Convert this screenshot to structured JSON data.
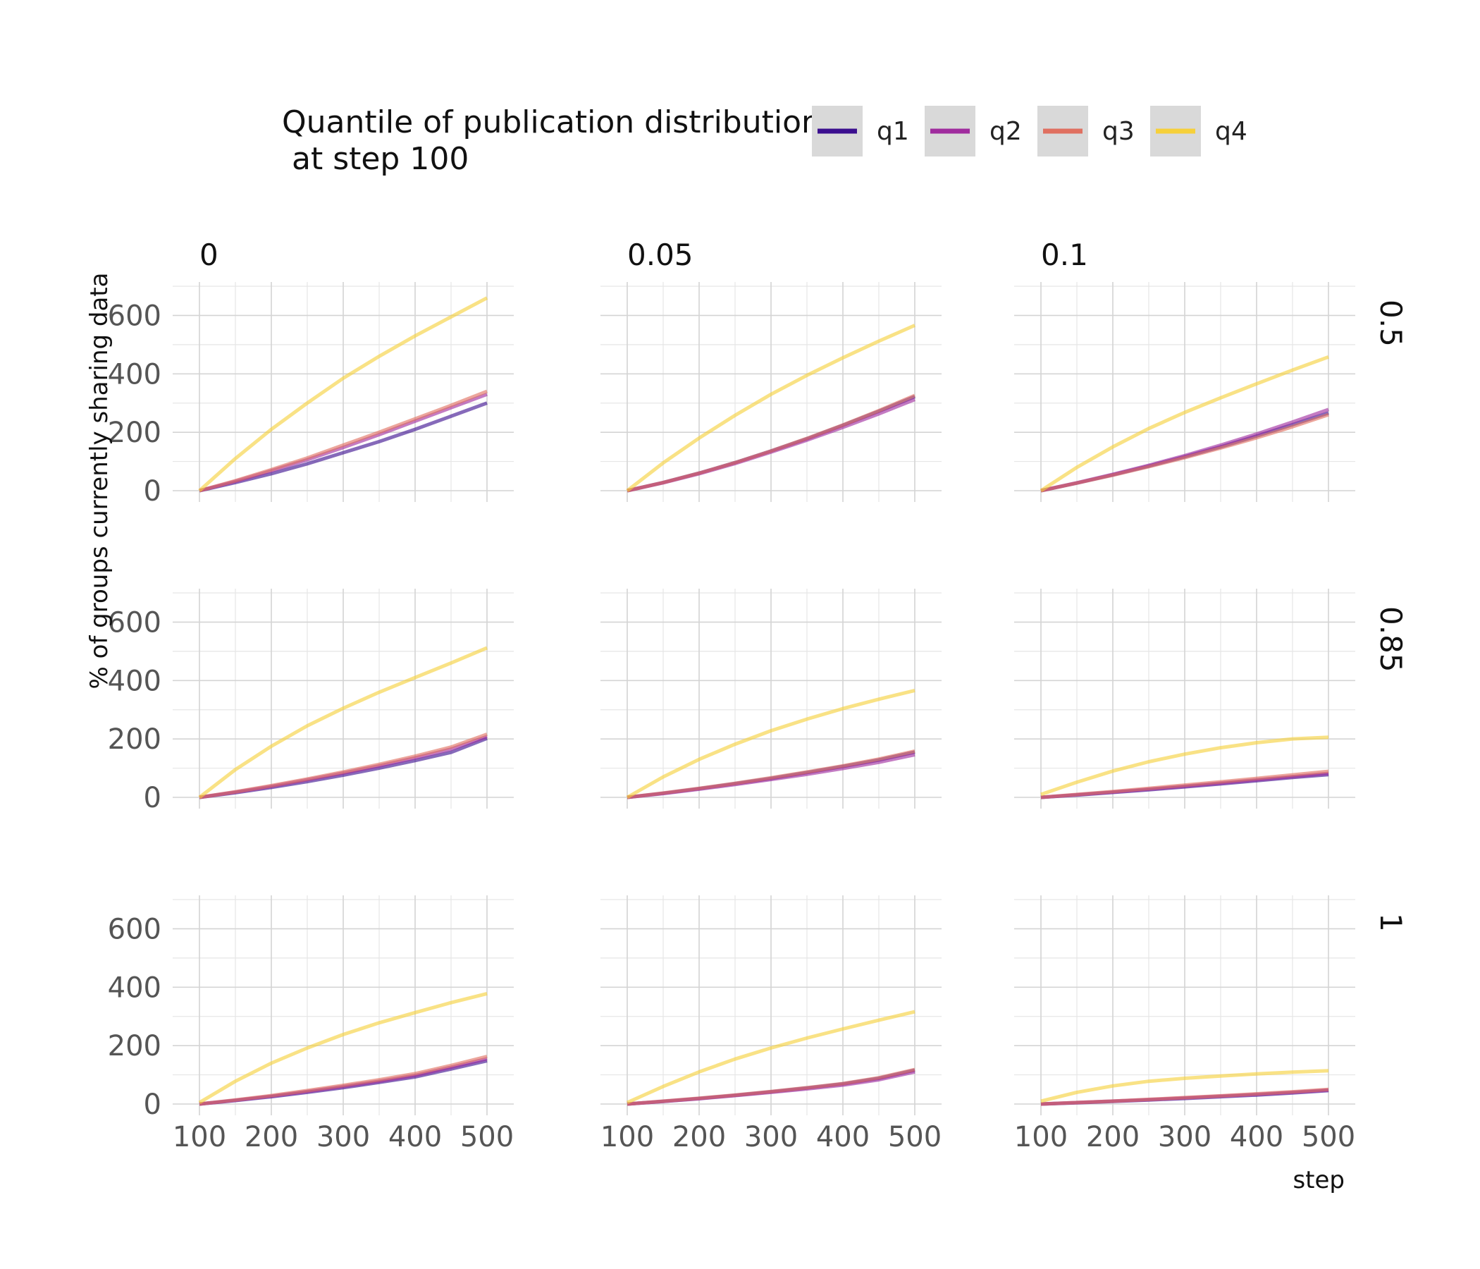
{
  "chart_data": {
    "type": "line",
    "legend": {
      "title_line1": "Quantile of publication distribution",
      "title_line2": " at step 100",
      "position": "top",
      "keys": [
        {
          "label": "q1",
          "color": "#3b0f8f"
        },
        {
          "label": "q2",
          "color": "#a02c9e"
        },
        {
          "label": "q3",
          "color": "#e07060"
        },
        {
          "label": "q4",
          "color": "#f6d03a"
        }
      ]
    },
    "ylabel": "% of groups currently sharing data",
    "xlabel": "step",
    "xlim": [
      100,
      500
    ],
    "ylim": [
      0,
      700
    ],
    "x_ticks": [
      "100",
      "200",
      "300",
      "400",
      "500"
    ],
    "y_ticks": [
      "0",
      "200",
      "400",
      "600"
    ],
    "grid": true,
    "facet_columns": [
      "0",
      "0.05",
      "0.1"
    ],
    "facet_rows": [
      "0.5",
      "0.85",
      "1"
    ],
    "x": [
      100,
      150,
      200,
      250,
      300,
      350,
      400,
      450,
      500
    ],
    "panels": [
      {
        "col": "0",
        "row": "0.5",
        "series": [
          {
            "name": "q1",
            "values": [
              0,
              28,
              58,
              92,
              130,
              168,
              210,
              255,
              300
            ]
          },
          {
            "name": "q2",
            "values": [
              0,
              32,
              68,
              106,
              148,
              192,
              238,
              284,
              330
            ]
          },
          {
            "name": "q3",
            "values": [
              0,
              34,
              72,
              112,
              156,
              200,
              246,
              292,
              340
            ]
          },
          {
            "name": "q4",
            "values": [
              0,
              110,
              210,
              300,
              385,
              460,
              530,
              595,
              660
            ]
          }
        ]
      },
      {
        "col": "0.05",
        "row": "0.5",
        "series": [
          {
            "name": "q1",
            "values": [
              0,
              28,
              60,
              96,
              136,
              178,
              224,
              272,
              322
            ]
          },
          {
            "name": "q2",
            "values": [
              0,
              27,
              58,
              93,
              132,
              173,
              217,
              263,
              312
            ]
          },
          {
            "name": "q3",
            "values": [
              0,
              28,
              60,
              96,
              136,
              179,
              225,
              274,
              326
            ]
          },
          {
            "name": "q4",
            "values": [
              0,
              95,
              180,
              258,
              330,
              395,
              455,
              512,
              566
            ]
          }
        ]
      },
      {
        "col": "0.1",
        "row": "0.5",
        "series": [
          {
            "name": "q1",
            "values": [
              0,
              26,
              54,
              84,
              116,
              150,
              187,
              226,
              266
            ]
          },
          {
            "name": "q2",
            "values": [
              0,
              27,
              56,
              87,
              120,
              156,
              194,
              235,
              278
            ]
          },
          {
            "name": "q3",
            "values": [
              0,
              26,
              53,
              82,
              113,
              146,
              181,
              219,
              260
            ]
          },
          {
            "name": "q4",
            "values": [
              0,
              80,
              150,
              213,
              268,
              318,
              366,
              413,
              458
            ]
          }
        ]
      },
      {
        "col": "0",
        "row": "0.85",
        "series": [
          {
            "name": "q1",
            "values": [
              0,
              16,
              34,
              54,
              76,
              100,
              126,
              154,
              202
            ]
          },
          {
            "name": "q2",
            "values": [
              0,
              18,
              38,
              60,
              83,
              108,
              135,
              165,
              208
            ]
          },
          {
            "name": "q3",
            "values": [
              0,
              19,
              40,
              63,
              87,
              113,
              141,
              172,
              216
            ]
          },
          {
            "name": "q4",
            "values": [
              0,
              95,
              175,
              245,
              305,
              360,
              410,
              460,
              512
            ]
          }
        ]
      },
      {
        "col": "0.05",
        "row": "0.85",
        "series": [
          {
            "name": "q1",
            "values": [
              0,
              14,
              30,
              47,
              65,
              85,
              106,
              128,
              155
            ]
          },
          {
            "name": "q2",
            "values": [
              0,
              13,
              28,
              44,
              61,
              79,
              99,
              120,
              146
            ]
          },
          {
            "name": "q3",
            "values": [
              0,
              15,
              31,
              48,
              67,
              87,
              108,
              131,
              158
            ]
          },
          {
            "name": "q4",
            "values": [
              0,
              70,
              130,
              182,
              228,
              268,
              304,
              336,
              366
            ]
          }
        ]
      },
      {
        "col": "0.1",
        "row": "0.85",
        "series": [
          {
            "name": "q1",
            "values": [
              0,
              8,
              17,
              26,
              36,
              46,
              57,
              68,
              78
            ]
          },
          {
            "name": "q2",
            "values": [
              0,
              9,
              18,
              28,
              38,
              49,
              60,
              71,
              82
            ]
          },
          {
            "name": "q3",
            "values": [
              0,
              10,
              20,
              31,
              42,
              53,
              65,
              77,
              89
            ]
          },
          {
            "name": "q4",
            "values": [
              10,
              52,
              90,
              122,
              148,
              170,
              187,
              200,
              206
            ]
          }
        ]
      },
      {
        "col": "0",
        "row": "1",
        "series": [
          {
            "name": "q1",
            "values": [
              0,
              12,
              25,
              40,
              56,
              74,
              93,
              120,
              148
            ]
          },
          {
            "name": "q2",
            "values": [
              0,
              13,
              27,
              43,
              60,
              78,
              98,
              126,
              155
            ]
          },
          {
            "name": "q3",
            "values": [
              0,
              14,
              29,
              46,
              64,
              83,
              104,
              132,
              163
            ]
          },
          {
            "name": "q4",
            "values": [
              5,
              78,
              140,
              192,
              238,
              278,
              313,
              347,
              378
            ]
          }
        ]
      },
      {
        "col": "0.05",
        "row": "1",
        "series": [
          {
            "name": "q1",
            "values": [
              0,
              9,
              19,
              30,
              42,
              55,
              69,
              88,
              116
            ]
          },
          {
            "name": "q2",
            "values": [
              0,
              9,
              18,
              29,
              40,
              52,
              65,
              83,
              110
            ]
          },
          {
            "name": "q3",
            "values": [
              0,
              10,
              20,
              31,
              43,
              56,
              70,
              90,
              118
            ]
          },
          {
            "name": "q4",
            "values": [
              5,
              60,
              110,
              154,
              192,
              226,
              257,
              287,
              316
            ]
          }
        ]
      },
      {
        "col": "0.1",
        "row": "1",
        "series": [
          {
            "name": "q1",
            "values": [
              0,
              4,
              9,
              14,
              19,
              25,
              31,
              38,
              46
            ]
          },
          {
            "name": "q2",
            "values": [
              0,
              5,
              10,
              15,
              21,
              27,
              33,
              40,
              48
            ]
          },
          {
            "name": "q3",
            "values": [
              0,
              5,
              10,
              16,
              22,
              28,
              35,
              42,
              50
            ]
          },
          {
            "name": "q4",
            "values": [
              10,
              40,
              62,
              78,
              88,
              96,
              103,
              109,
              114
            ]
          }
        ]
      }
    ]
  }
}
